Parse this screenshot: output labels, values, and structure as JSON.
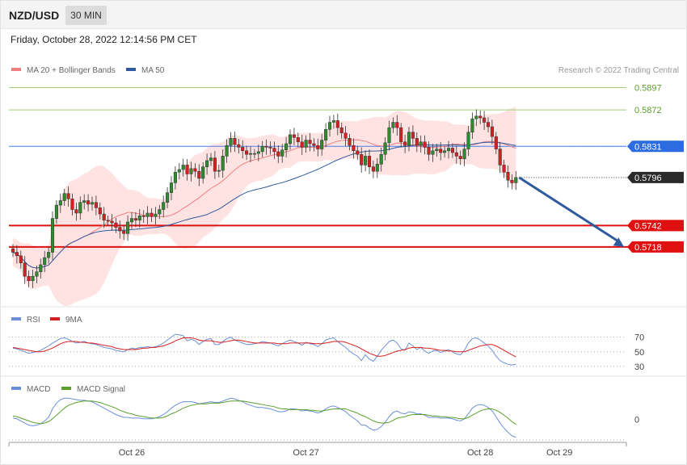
{
  "header": {
    "symbol": "NZD/USD",
    "timeframe": "30 MIN",
    "datetime": "Friday, October 28, 2022 12:14:56 PM CET"
  },
  "legend": {
    "ma20": "MA 20 + Bollinger Bands",
    "ma50": "MA 50",
    "copyright": "Research © 2022 Trading Central",
    "rsi": "RSI",
    "rsi_ma": "9MA",
    "macd": "MACD",
    "macd_signal": "MACD Signal"
  },
  "colors": {
    "ma20": "#f08080",
    "ma50": "#2f5a9e",
    "bands": "#ffdede",
    "up": "#2e8b2e",
    "down": "#d62020",
    "green_level": "#5aa02c",
    "blue_level": "#2d6be0",
    "red_level": "#e01010",
    "rsi": "#6b8fd6",
    "rsi_ma": "#d62020",
    "macd": "#6b8fd6",
    "macd_signal": "#5aa02c",
    "arrow": "#2f5a9e"
  },
  "chart_data": {
    "type": "candlestick",
    "price_range": [
      0.5658,
      0.5912
    ],
    "levels": [
      {
        "value": 0.5897,
        "label": "0.5897",
        "kind": "resistance"
      },
      {
        "value": 0.5872,
        "label": "0.5872",
        "kind": "resistance"
      },
      {
        "value": 0.5831,
        "label": "0.5831",
        "kind": "pivot"
      },
      {
        "value": 0.5796,
        "label": "0.5796",
        "kind": "last"
      },
      {
        "value": 0.5742,
        "label": "0.5742",
        "kind": "support"
      },
      {
        "value": 0.5718,
        "label": "0.5718",
        "kind": "support"
      }
    ],
    "forecast": {
      "from": 0.5796,
      "to": 0.5718
    },
    "rsi_levels": [
      {
        "value": 70,
        "label": "70"
      },
      {
        "value": 50,
        "label": "50"
      },
      {
        "value": 30,
        "label": "30"
      }
    ],
    "macd_levels": [
      {
        "value": 0,
        "label": "0"
      }
    ],
    "x_labels": [
      {
        "label": "Oct 26",
        "bar": 30
      },
      {
        "label": "Oct 27",
        "bar": 74
      },
      {
        "label": "Oct 28",
        "bar": 118
      },
      {
        "label": "Oct 29",
        "bar": 138
      }
    ],
    "closes": [
      0.5712,
      0.5708,
      0.57,
      0.5685,
      0.568,
      0.5685,
      0.569,
      0.5698,
      0.5706,
      0.5712,
      0.575,
      0.5765,
      0.577,
      0.5778,
      0.5772,
      0.576,
      0.5756,
      0.5768,
      0.577,
      0.5766,
      0.5768,
      0.5762,
      0.5755,
      0.5748,
      0.5747,
      0.5745,
      0.574,
      0.5736,
      0.5733,
      0.5746,
      0.575,
      0.5748,
      0.5753,
      0.5752,
      0.5756,
      0.5752,
      0.5755,
      0.576,
      0.5768,
      0.5779,
      0.579,
      0.5802,
      0.5805,
      0.581,
      0.58,
      0.5806,
      0.5803,
      0.5795,
      0.5808,
      0.5815,
      0.5818,
      0.5803,
      0.5804,
      0.582,
      0.5832,
      0.584,
      0.5833,
      0.583,
      0.5826,
      0.5822,
      0.5823,
      0.5823,
      0.5825,
      0.5831,
      0.583,
      0.5829,
      0.5825,
      0.582,
      0.5827,
      0.5834,
      0.5844,
      0.5841,
      0.5836,
      0.583,
      0.5838,
      0.5834,
      0.5832,
      0.5828,
      0.5838,
      0.585,
      0.5858,
      0.586,
      0.5852,
      0.5846,
      0.584,
      0.5832,
      0.5826,
      0.5822,
      0.581,
      0.582,
      0.5808,
      0.5803,
      0.5811,
      0.5822,
      0.5835,
      0.5852,
      0.5858,
      0.5852,
      0.5836,
      0.5832,
      0.5847,
      0.584,
      0.5832,
      0.5836,
      0.583,
      0.5822,
      0.5826,
      0.5828,
      0.5824,
      0.5826,
      0.5829,
      0.5824,
      0.582,
      0.5817,
      0.5828,
      0.5847,
      0.5862,
      0.5865,
      0.5863,
      0.5858,
      0.5853,
      0.5842,
      0.5828,
      0.581,
      0.5802,
      0.5793,
      0.579,
      0.5796
    ],
    "rsi": [
      55,
      54,
      52,
      50,
      48,
      49,
      50,
      52,
      55,
      58,
      62,
      65,
      68,
      69,
      67,
      64,
      62,
      63,
      64,
      62,
      61,
      60,
      58,
      56,
      55,
      54,
      52,
      51,
      50,
      53,
      55,
      54,
      56,
      56,
      57,
      56,
      57,
      59,
      62,
      66,
      70,
      74,
      73,
      72,
      65,
      67,
      65,
      60,
      64,
      67,
      68,
      60,
      60,
      64,
      68,
      70,
      66,
      64,
      62,
      60,
      60,
      61,
      62,
      64,
      63,
      62,
      60,
      58,
      61,
      64,
      66,
      64,
      62,
      59,
      63,
      61,
      60,
      57,
      61,
      66,
      68,
      69,
      64,
      60,
      56,
      51,
      47,
      44,
      38,
      46,
      40,
      37,
      44,
      52,
      58,
      64,
      66,
      62,
      54,
      52,
      62,
      58,
      53,
      56,
      51,
      48,
      51,
      52,
      49,
      51,
      53,
      50,
      47,
      46,
      52,
      62,
      68,
      69,
      66,
      62,
      58,
      52,
      44,
      38,
      35,
      33,
      32,
      33
    ],
    "rsi_ma": [
      56,
      55,
      54,
      53,
      52,
      51,
      50,
      50,
      51,
      53,
      55,
      58,
      61,
      63,
      64,
      64,
      64,
      63,
      63,
      62,
      62,
      61,
      60,
      59,
      58,
      57,
      55,
      54,
      53,
      53,
      53,
      53,
      54,
      55,
      55,
      56,
      56,
      57,
      58,
      60,
      62,
      65,
      67,
      69,
      69,
      69,
      68,
      66,
      65,
      65,
      65,
      64,
      63,
      63,
      64,
      65,
      66,
      66,
      65,
      64,
      63,
      62,
      62,
      62,
      62,
      62,
      62,
      61,
      61,
      61,
      62,
      62,
      62,
      62,
      62,
      62,
      61,
      61,
      61,
      62,
      63,
      64,
      64,
      64,
      63,
      61,
      59,
      57,
      54,
      51,
      48,
      46,
      44,
      44,
      45,
      47,
      49,
      51,
      52,
      53,
      55,
      56,
      56,
      56,
      55,
      55,
      54,
      53,
      52,
      52,
      51,
      51,
      50,
      50,
      50,
      52,
      54,
      56,
      58,
      59,
      60,
      60,
      58,
      55,
      52,
      49,
      46,
      43
    ],
    "macd": [
      0.2,
      0.1,
      -0.2,
      -0.5,
      -0.8,
      -0.9,
      -0.8,
      -0.6,
      -0.2,
      0.3,
      1.5,
      2.3,
      2.8,
      3.0,
      3.0,
      2.9,
      2.8,
      2.7,
      2.7,
      2.6,
      2.5,
      2.2,
      1.9,
      1.6,
      1.3,
      1.0,
      0.7,
      0.5,
      0.3,
      0.3,
      0.2,
      0.2,
      0.2,
      0.1,
      0.1,
      0.1,
      0.2,
      0.4,
      0.7,
      1.1,
      1.6,
      2.0,
      2.3,
      2.5,
      2.5,
      2.5,
      2.4,
      2.2,
      2.3,
      2.4,
      2.5,
      2.4,
      2.4,
      2.6,
      2.8,
      3.0,
      2.9,
      2.7,
      2.5,
      2.2,
      2.0,
      1.8,
      1.7,
      1.7,
      1.6,
      1.5,
      1.3,
      1.1,
      1.1,
      1.2,
      1.5,
      1.5,
      1.4,
      1.2,
      1.3,
      1.2,
      1.1,
      0.9,
      1.1,
      1.5,
      1.8,
      1.9,
      1.7,
      1.4,
      1.1,
      0.6,
      0.2,
      -0.2,
      -0.8,
      -0.8,
      -1.2,
      -1.5,
      -1.4,
      -1.0,
      -0.4,
      0.4,
      1.0,
      1.2,
      0.9,
      0.8,
      1.1,
      1.0,
      0.8,
      0.8,
      0.6,
      0.3,
      0.3,
      0.3,
      0.2,
      0.2,
      0.2,
      0.1,
      -0.1,
      -0.2,
      0.1,
      0.8,
      1.6,
      2.0,
      2.1,
      2.0,
      1.7,
      1.2,
      0.4,
      -0.5,
      -1.2,
      -1.8,
      -2.3,
      -2.5
    ],
    "macd_signal": [
      0.5,
      0.4,
      0.2,
      0.0,
      -0.2,
      -0.4,
      -0.5,
      -0.6,
      -0.5,
      -0.3,
      0.1,
      0.6,
      1.1,
      1.6,
      2.0,
      2.2,
      2.4,
      2.5,
      2.6,
      2.6,
      2.6,
      2.5,
      2.4,
      2.2,
      2.0,
      1.8,
      1.6,
      1.3,
      1.1,
      0.9,
      0.8,
      0.6,
      0.5,
      0.4,
      0.3,
      0.2,
      0.2,
      0.2,
      0.3,
      0.5,
      0.8,
      1.0,
      1.3,
      1.6,
      1.8,
      2.0,
      2.1,
      2.2,
      2.2,
      2.2,
      2.3,
      2.3,
      2.3,
      2.4,
      2.5,
      2.6,
      2.6,
      2.6,
      2.6,
      2.5,
      2.4,
      2.3,
      2.2,
      2.1,
      2.0,
      1.9,
      1.8,
      1.6,
      1.5,
      1.5,
      1.4,
      1.4,
      1.4,
      1.4,
      1.4,
      1.3,
      1.3,
      1.2,
      1.2,
      1.3,
      1.4,
      1.5,
      1.5,
      1.5,
      1.5,
      1.3,
      1.1,
      0.9,
      0.6,
      0.4,
      0.1,
      -0.2,
      -0.4,
      -0.5,
      -0.5,
      -0.4,
      -0.1,
      0.2,
      0.3,
      0.4,
      0.6,
      0.7,
      0.7,
      0.7,
      0.7,
      0.6,
      0.5,
      0.5,
      0.4,
      0.4,
      0.3,
      0.3,
      0.2,
      0.1,
      0.1,
      0.3,
      0.6,
      0.9,
      1.2,
      1.4,
      1.5,
      1.5,
      1.3,
      1.0,
      0.6,
      0.2,
      -0.3,
      -0.7
    ]
  }
}
